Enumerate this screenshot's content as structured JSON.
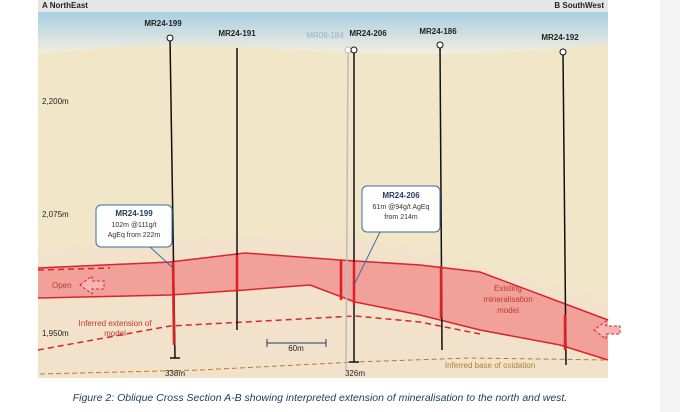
{
  "header": {
    "left": "A NorthEast",
    "right": "B SouthWest"
  },
  "elevations": [
    "2,200m",
    "2,075m",
    "1,950m"
  ],
  "holes": [
    {
      "label": "MR24-199",
      "depth": "338m"
    },
    {
      "label": "MR24-191"
    },
    {
      "label": "MR08-184"
    },
    {
      "label": "MR24-206",
      "depth": "326m"
    },
    {
      "label": "MR24-186"
    },
    {
      "label": "MR24-192"
    }
  ],
  "callouts": [
    {
      "title": "MR24-199",
      "lines": [
        "102m @111g/t",
        "AgEq from 222m"
      ]
    },
    {
      "title": "MR24-206",
      "lines": [
        "61m @94g/t AgEq",
        "from 214m"
      ]
    }
  ],
  "annotations": {
    "open": "Open",
    "inferred": [
      "Inferred extension of",
      "model"
    ],
    "existing": [
      "Existing",
      "mineralisation",
      "model"
    ],
    "oxidation": "Inferred base of oxidation"
  },
  "scale": "60m",
  "caption": "Figure 2: Oblique Cross Section A-B showing interpreted extension of mineralisation to the north and west."
}
